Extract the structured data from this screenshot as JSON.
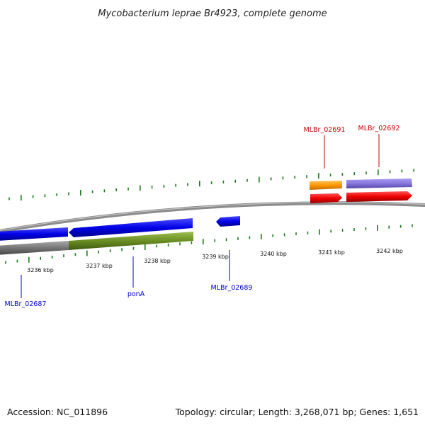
{
  "title": "Mycobacterium leprae Br4923, complete genome",
  "footer": {
    "accession": "Accession: NC_011896",
    "summary": "Topology: circular; Length: 3,268,071 bp; Genes: 1,651"
  },
  "scale": {
    "unit": "kbp",
    "ticks": [
      {
        "label": "3236 kbp"
      },
      {
        "label": "3237 kbp"
      },
      {
        "label": "3238 kbp"
      },
      {
        "label": "3239 kbp"
      },
      {
        "label": "3240 kbp"
      },
      {
        "label": "3241 kbp"
      },
      {
        "label": "3242 kbp"
      }
    ]
  },
  "gene_labels": [
    {
      "text": "MLBr_02691",
      "color": "#cc0000"
    },
    {
      "text": "MLBr_02692",
      "color": "#cc0000"
    },
    {
      "text": "MLBr_02687",
      "color": "#0000cc"
    },
    {
      "text": "ponA",
      "color": "#0000cc"
    },
    {
      "text": "MLBr_02689",
      "color": "#0000cc"
    }
  ],
  "colors": {
    "backbone": "#8a8a8a",
    "reverse_cds": "#0000e6",
    "forward_cds": "#ee0000",
    "gene_forward": "#8877dd",
    "gene_misc": "#ff9900",
    "gene_reverse": "#6b8e23",
    "gene_gray": "#777777",
    "tick": "#1a7a1a"
  }
}
